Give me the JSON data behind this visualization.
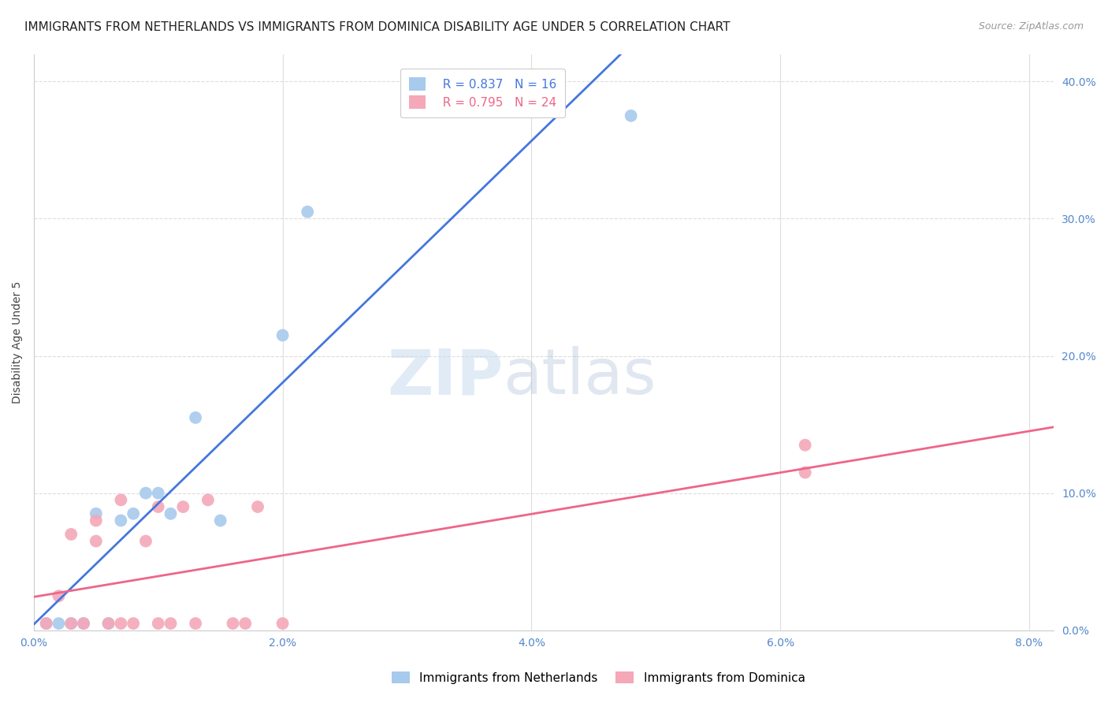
{
  "title": "IMMIGRANTS FROM NETHERLANDS VS IMMIGRANTS FROM DOMINICA DISABILITY AGE UNDER 5 CORRELATION CHART",
  "source": "Source: ZipAtlas.com",
  "ylabel": "Disability Age Under 5",
  "netherlands_x": [
    0.001,
    0.002,
    0.003,
    0.004,
    0.005,
    0.006,
    0.007,
    0.008,
    0.009,
    0.01,
    0.011,
    0.013,
    0.015,
    0.02,
    0.022,
    0.048
  ],
  "netherlands_y": [
    0.005,
    0.005,
    0.005,
    0.005,
    0.085,
    0.005,
    0.08,
    0.085,
    0.1,
    0.1,
    0.085,
    0.155,
    0.08,
    0.215,
    0.305,
    0.375
  ],
  "dominica_x": [
    0.001,
    0.002,
    0.003,
    0.003,
    0.004,
    0.005,
    0.005,
    0.006,
    0.007,
    0.007,
    0.008,
    0.009,
    0.01,
    0.01,
    0.011,
    0.012,
    0.013,
    0.014,
    0.016,
    0.017,
    0.018,
    0.02,
    0.062,
    0.062
  ],
  "dominica_y": [
    0.005,
    0.025,
    0.005,
    0.07,
    0.005,
    0.065,
    0.08,
    0.005,
    0.005,
    0.095,
    0.005,
    0.065,
    0.09,
    0.005,
    0.005,
    0.09,
    0.005,
    0.095,
    0.005,
    0.005,
    0.09,
    0.005,
    0.115,
    0.135
  ],
  "netherlands_color": "#A8CAED",
  "dominica_color": "#F4A8B8",
  "netherlands_line_color": "#4477DD",
  "dominica_line_color": "#EE6688",
  "netherlands_R": 0.837,
  "netherlands_N": 16,
  "dominica_R": 0.795,
  "dominica_N": 24,
  "xlim": [
    0.0,
    0.082
  ],
  "ylim": [
    0.0,
    0.42
  ],
  "xticks": [
    0.0,
    0.02,
    0.04,
    0.06,
    0.08
  ],
  "xtick_labels": [
    "0.0%",
    "2.0%",
    "4.0%",
    "6.0%",
    "8.0%"
  ],
  "yticks_right": [
    0.0,
    0.1,
    0.2,
    0.3,
    0.4
  ],
  "ytick_labels_right": [
    "0.0%",
    "10.0%",
    "20.0%",
    "30.0%",
    "40.0%"
  ],
  "watermark_zip": "ZIP",
  "watermark_atlas": "atlas",
  "background_color": "#FFFFFF",
  "grid_color": "#DDDDDD",
  "title_fontsize": 11,
  "axis_label_fontsize": 10,
  "tick_fontsize": 10,
  "legend_fontsize": 11
}
